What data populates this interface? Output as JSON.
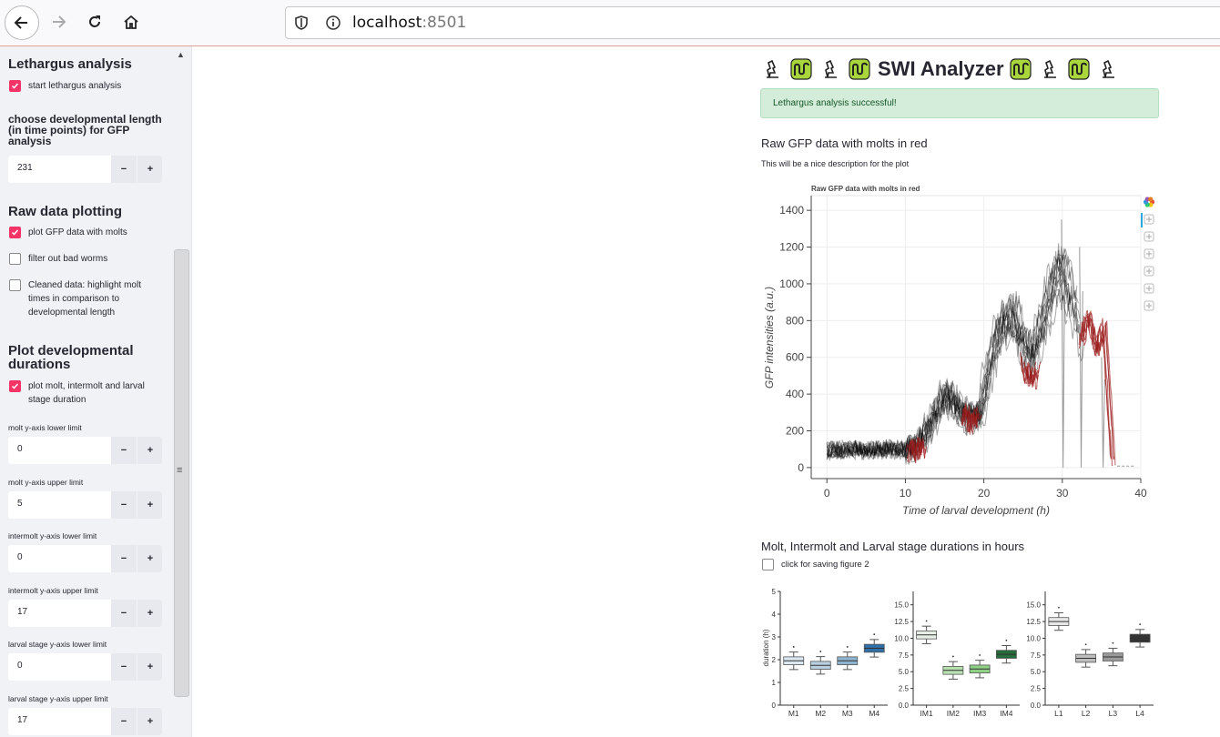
{
  "browser": {
    "url_host": "localhost",
    "url_port": ":8501"
  },
  "sidebar": {
    "lethargus": {
      "heading": "Lethargus analysis",
      "start_label": "start lethargus analysis",
      "start_checked": true,
      "dev_length_label": "choose developmental length (in time points) for GFP analysis",
      "dev_length_value": "231"
    },
    "raw": {
      "heading": "Raw data plotting",
      "plot_molts_label": "plot GFP data with molts",
      "plot_molts_checked": true,
      "filter_label": "filter out bad worms",
      "filter_checked": false,
      "cleaned_label": "Cleaned data: highlight molt times in comparison to developmental length",
      "cleaned_checked": false
    },
    "durations": {
      "heading": "Plot developmental durations",
      "plot_label": "plot molt, intermolt and larval stage duration",
      "plot_checked": true,
      "fields": [
        {
          "label": "molt y-axis lower limit",
          "value": "0"
        },
        {
          "label": "molt y-axis upper limit",
          "value": "5"
        },
        {
          "label": "intermolt y-axis lower limit",
          "value": "0"
        },
        {
          "label": "intermolt y-axis upper limit",
          "value": "17"
        },
        {
          "label": "larval stage y-axis lower limit",
          "value": "0"
        },
        {
          "label": "larval stage y-axis upper limit",
          "value": "17"
        }
      ]
    },
    "minus_label": "−",
    "plus_label": "+"
  },
  "main": {
    "title": "SWI Analyzer",
    "success": "Lethargus analysis successful!",
    "raw_heading": "Raw GFP data with molts in red",
    "raw_description": "This will be a nice description for the plot",
    "durations_heading": "Molt, Intermolt and Larval stage durations in hours",
    "save_label": "click for saving figure 2",
    "save_checked": false
  },
  "colors": {
    "accent": "#f63366",
    "success_bg": "#d4edda",
    "molt_red": "#9b1c1c",
    "trace_black": "#000000"
  },
  "chart_data": [
    {
      "type": "line",
      "title": "Raw GFP data with molts in red",
      "xlabel": "Time of larval development (h)",
      "ylabel": "GFP intensities (a.u.)",
      "xlim": [
        -2,
        40
      ],
      "ylim": [
        -60,
        1480
      ],
      "x_ticks": [
        "0",
        "10",
        "20",
        "30",
        "40"
      ],
      "y_ticks": [
        "0",
        "200",
        "400",
        "600",
        "800",
        "1000",
        "1200",
        "1400"
      ],
      "grid": true,
      "toolbar_icons": [
        "bokeh-logo-icon",
        "pan-icon",
        "box-zoom-icon",
        "wheel-zoom-icon",
        "save-icon",
        "reset-icon",
        "help-icon"
      ],
      "series": [
        {
          "color": "black",
          "x": [
            0,
            3,
            6,
            9,
            10.5,
            12.5,
            15,
            16.5,
            18,
            19.5,
            21,
            22.5,
            24,
            24.8,
            26,
            27.5,
            29,
            30,
            31,
            32.2
          ],
          "y": [
            90,
            100,
            95,
            100,
            95,
            170,
            400,
            340,
            270,
            290,
            600,
            800,
            800,
            700,
            580,
            780,
            1000,
            1080,
            900,
            720
          ]
        },
        {
          "color": "red",
          "x": [
            10.5,
            11,
            11.5,
            12,
            12.5
          ],
          "y": [
            70,
            130,
            60,
            120,
            90
          ]
        },
        {
          "color": "red",
          "x": [
            17.5,
            18,
            18.5,
            19,
            19.5
          ],
          "y": [
            250,
            300,
            220,
            280,
            260
          ]
        },
        {
          "color": "red",
          "x": [
            25,
            25.5,
            26,
            26.5,
            27
          ],
          "y": [
            580,
            480,
            520,
            470,
            560
          ]
        },
        {
          "color": "red",
          "x": [
            32.5,
            33.5,
            34.5,
            35.5,
            36,
            36.6
          ],
          "y": [
            700,
            820,
            640,
            760,
            420,
            0
          ]
        }
      ]
    },
    {
      "type": "box",
      "ylabel": "duration (h)",
      "panels": [
        {
          "categories": [
            "M1",
            "M2",
            "M3",
            "M4"
          ],
          "y_ticks": [
            "0",
            "1",
            "2",
            "3",
            "4",
            "5"
          ],
          "ylim": [
            0,
            5
          ],
          "medians": [
            1.95,
            1.75,
            1.95,
            2.5
          ]
        },
        {
          "categories": [
            "IM1",
            "IM2",
            "IM3",
            "IM4"
          ],
          "y_ticks": [
            "0.0",
            "2.5",
            "5.0",
            "7.5",
            "10.0",
            "12.5",
            "15.0"
          ],
          "ylim": [
            0,
            17
          ],
          "medians": [
            10.5,
            5.2,
            5.4,
            7.6
          ]
        },
        {
          "categories": [
            "L1",
            "L2",
            "L3",
            "L4"
          ],
          "y_ticks": [
            "0.0",
            "2.5",
            "5.0",
            "7.5",
            "10.0",
            "12.5",
            "15.0"
          ],
          "ylim": [
            0,
            17
          ],
          "medians": [
            12.5,
            7.0,
            7.2,
            10.0
          ]
        }
      ]
    }
  ]
}
